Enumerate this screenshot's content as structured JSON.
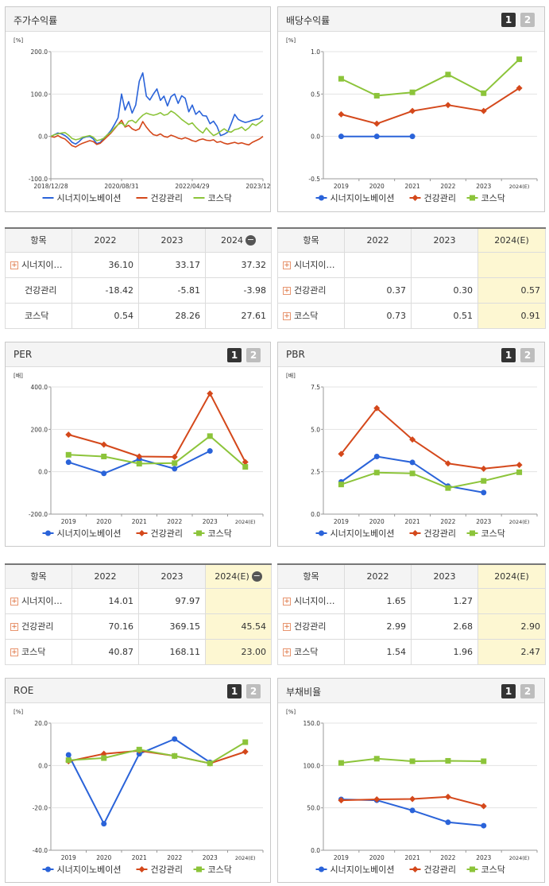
{
  "colors": {
    "s1": "#2a63d9",
    "s2": "#d4481b",
    "s3": "#8cc43a"
  },
  "icons": {
    "plus": "plus-icon",
    "minus": "minus-circle-icon"
  },
  "charts": [
    {
      "id": "stock",
      "title": "주가수익률",
      "buttons": [],
      "chart_data": {
        "type": "line",
        "unit": "[%]",
        "ylim": [
          -100,
          200
        ],
        "yticks": [
          "200.0",
          "100.0",
          "0.0",
          "-100.0"
        ],
        "xticks": [
          "2018/12/28",
          "2020/08/31",
          "2022/04/29",
          "2023/12/28"
        ],
        "n": 61,
        "series": [
          {
            "name": "시너지이노베이션",
            "values": [
              0,
              4,
              8,
              6,
              2,
              -5,
              -14,
              -18,
              -12,
              -4,
              -1,
              0,
              -6,
              -17,
              -14,
              -4,
              4,
              14,
              28,
              44,
              100,
              62,
              82,
              55,
              74,
              130,
              150,
              95,
              86,
              100,
              112,
              85,
              95,
              72,
              94,
              100,
              78,
              96,
              90,
              58,
              74,
              52,
              60,
              49,
              48,
              30,
              36,
              24,
              2,
              5,
              10,
              30,
              52,
              40,
              36,
              33,
              35,
              38,
              40,
              42,
              50
            ]
          },
          {
            "name": "건강관리",
            "values": [
              0,
              -2,
              2,
              -3,
              -6,
              -14,
              -22,
              -25,
              -20,
              -16,
              -13,
              -10,
              -12,
              -19,
              -16,
              -8,
              0,
              8,
              18,
              28,
              38,
              22,
              26,
              18,
              14,
              18,
              35,
              22,
              12,
              4,
              2,
              6,
              0,
              -2,
              3,
              0,
              -4,
              -6,
              -3,
              -6,
              -10,
              -12,
              -8,
              -6,
              -9,
              -10,
              -8,
              -14,
              -12,
              -16,
              -18,
              -16,
              -14,
              -17,
              -15,
              -18,
              -20,
              -14,
              -10,
              -6,
              0
            ]
          },
          {
            "name": "코스닥",
            "values": [
              0,
              4,
              6,
              8,
              9,
              3,
              -5,
              -8,
              -6,
              -2,
              0,
              2,
              -2,
              -10,
              -8,
              -4,
              4,
              10,
              20,
              28,
              32,
              24,
              36,
              38,
              32,
              42,
              50,
              55,
              52,
              50,
              52,
              56,
              50,
              52,
              60,
              55,
              48,
              40,
              34,
              28,
              32,
              22,
              14,
              8,
              20,
              10,
              2,
              6,
              12,
              18,
              12,
              10,
              16,
              18,
              22,
              14,
              20,
              30,
              26,
              32,
              38
            ]
          }
        ]
      }
    },
    {
      "id": "dividend",
      "title": "배당수익률",
      "buttons": [
        "1",
        "2"
      ],
      "chart_data": {
        "type": "line",
        "unit": "[%]",
        "ylim": [
          -0.5,
          1.0
        ],
        "yticks": [
          "1.0",
          "0.5",
          "0.0",
          "-0.5"
        ],
        "categories": [
          "2019",
          "2020",
          "2021",
          "2022",
          "2023",
          "2024(E)"
        ],
        "series": [
          {
            "name": "시너지이노베이션",
            "values": [
              0,
              0,
              0,
              null,
              null,
              null
            ]
          },
          {
            "name": "건강관리",
            "values": [
              0.26,
              0.15,
              0.3,
              0.37,
              0.3,
              0.57
            ]
          },
          {
            "name": "코스닥",
            "values": [
              0.68,
              0.48,
              0.52,
              0.73,
              0.51,
              0.91
            ]
          }
        ]
      }
    },
    {
      "id": "per",
      "title": "PER",
      "buttons": [
        "1",
        "2"
      ],
      "chart_data": {
        "type": "line",
        "unit": "[배]",
        "ylim": [
          -200,
          400
        ],
        "yticks": [
          "400.0",
          "200.0",
          "0.0",
          "-200.0"
        ],
        "categories": [
          "2019",
          "2020",
          "2021",
          "2022",
          "2023",
          "2024(E)"
        ],
        "series": [
          {
            "name": "시너지이노베이션",
            "values": [
              45,
              -8,
              60,
              14.01,
              97.97,
              null
            ]
          },
          {
            "name": "건강관리",
            "values": [
              175,
              128,
              72,
              70.16,
              369.15,
              45.54
            ]
          },
          {
            "name": "코스닥",
            "values": [
              80,
              72,
              38,
              40.87,
              168.11,
              23.0
            ]
          }
        ]
      }
    },
    {
      "id": "pbr",
      "title": "PBR",
      "buttons": [
        "1",
        "2"
      ],
      "chart_data": {
        "type": "line",
        "unit": "[배]",
        "ylim": [
          0,
          7.5
        ],
        "yticks": [
          "7.5",
          "5.0",
          "2.5",
          "0.0"
        ],
        "categories": [
          "2019",
          "2020",
          "2021",
          "2022",
          "2023",
          "2024(E)"
        ],
        "series": [
          {
            "name": "시너지이노베이션",
            "values": [
              1.9,
              3.4,
              3.05,
              1.65,
              1.27,
              null
            ]
          },
          {
            "name": "건강관리",
            "values": [
              3.55,
              6.25,
              4.4,
              2.99,
              2.68,
              2.9
            ]
          },
          {
            "name": "코스닥",
            "values": [
              1.75,
              2.45,
              2.4,
              1.54,
              1.96,
              2.47
            ]
          }
        ]
      }
    },
    {
      "id": "roe",
      "title": "ROE",
      "buttons": [
        "1",
        "2"
      ],
      "chart_data": {
        "type": "line",
        "unit": "[%]",
        "ylim": [
          -40,
          20
        ],
        "yticks": [
          "20.0",
          "0.0",
          "-20.0",
          "-40.0"
        ],
        "categories": [
          "2019",
          "2020",
          "2021",
          "2022",
          "2023",
          "2024(E)"
        ],
        "series": [
          {
            "name": "시너지이노베이션",
            "values": [
              5,
              -27.5,
              5.5,
              12.5,
              1.5,
              null
            ]
          },
          {
            "name": "건강관리",
            "values": [
              2,
              5.5,
              7,
              4.5,
              1,
              6.5
            ]
          },
          {
            "name": "코스닥",
            "values": [
              2.5,
              3.5,
              7.5,
              4.5,
              1,
              11
            ]
          }
        ]
      }
    },
    {
      "id": "debt",
      "title": "부채비율",
      "buttons": [
        "1",
        "2"
      ],
      "chart_data": {
        "type": "line",
        "unit": "[%]",
        "ylim": [
          0,
          150
        ],
        "yticks": [
          "150.0",
          "100.0",
          "50.0",
          "0.0"
        ],
        "categories": [
          "2019",
          "2020",
          "2021",
          "2022",
          "2023",
          "2024(E)"
        ],
        "series": [
          {
            "name": "시너지이노베이션",
            "values": [
              60,
              59,
              47,
              33,
              29,
              null
            ]
          },
          {
            "name": "건강관리",
            "values": [
              59,
              60,
              60.5,
              63,
              52,
              null
            ]
          },
          {
            "name": "코스닥",
            "values": [
              103,
              108,
              105,
              105.5,
              105,
              null
            ]
          }
        ]
      }
    }
  ],
  "tables": [
    {
      "id": "stock",
      "headers": [
        "항목",
        "2022",
        "2023",
        "2024"
      ],
      "minus": true,
      "hl": false,
      "rows": [
        {
          "name": "시너지이…",
          "plus": true,
          "vals": [
            "36.10",
            "33.17",
            "37.32"
          ]
        },
        {
          "name": "건강관리",
          "plus": false,
          "vals": [
            "-18.42",
            "-5.81",
            "-3.98"
          ]
        },
        {
          "name": "코스닥",
          "plus": false,
          "vals": [
            "0.54",
            "28.26",
            "27.61"
          ]
        }
      ]
    },
    {
      "id": "dividend",
      "headers": [
        "항목",
        "2022",
        "2023",
        "2024(E)"
      ],
      "minus": false,
      "hl": true,
      "rows": [
        {
          "name": "시너지이…",
          "plus": true,
          "vals": [
            "",
            "",
            ""
          ]
        },
        {
          "name": "건강관리",
          "plus": true,
          "vals": [
            "0.37",
            "0.30",
            "0.57"
          ]
        },
        {
          "name": "코스닥",
          "plus": true,
          "vals": [
            "0.73",
            "0.51",
            "0.91"
          ]
        }
      ]
    },
    {
      "id": "per",
      "headers": [
        "항목",
        "2022",
        "2023",
        "2024(E)"
      ],
      "minus": true,
      "hl": true,
      "rows": [
        {
          "name": "시너지이…",
          "plus": true,
          "vals": [
            "14.01",
            "97.97",
            ""
          ]
        },
        {
          "name": "건강관리",
          "plus": true,
          "vals": [
            "70.16",
            "369.15",
            "45.54"
          ]
        },
        {
          "name": "코스닥",
          "plus": true,
          "vals": [
            "40.87",
            "168.11",
            "23.00"
          ]
        }
      ]
    },
    {
      "id": "pbr",
      "headers": [
        "항목",
        "2022",
        "2023",
        "2024(E)"
      ],
      "minus": false,
      "hl": true,
      "rows": [
        {
          "name": "시너지이…",
          "plus": true,
          "vals": [
            "1.65",
            "1.27",
            ""
          ]
        },
        {
          "name": "건강관리",
          "plus": true,
          "vals": [
            "2.99",
            "2.68",
            "2.90"
          ]
        },
        {
          "name": "코스닥",
          "plus": true,
          "vals": [
            "1.54",
            "1.96",
            "2.47"
          ]
        }
      ]
    }
  ]
}
